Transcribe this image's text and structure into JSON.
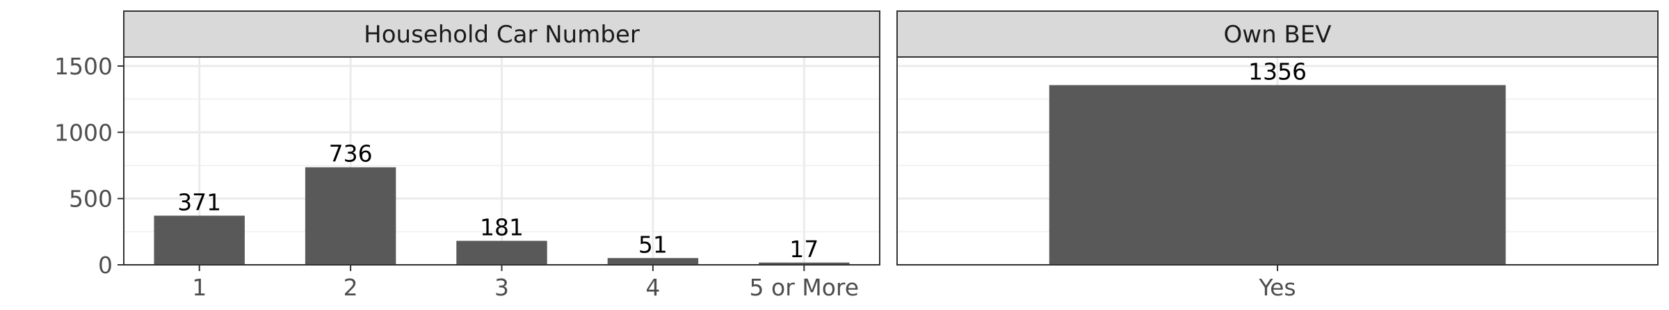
{
  "chart_data": [
    {
      "type": "bar",
      "title": "Household Car Number",
      "categories": [
        "1",
        "2",
        "3",
        "4",
        "5 or More"
      ],
      "values": [
        371,
        736,
        181,
        51,
        17
      ],
      "data_labels": [
        "371",
        "736",
        "181",
        "51",
        "17"
      ],
      "xlabel": "",
      "ylabel": "",
      "ylim": [
        0,
        1500
      ],
      "yticks": [
        0,
        500,
        1000,
        1500
      ],
      "ytick_labels": [
        "0",
        "500",
        "1000",
        "1500"
      ],
      "bar_color": "#595959",
      "grid": true
    },
    {
      "type": "bar",
      "title": "Own BEV",
      "categories": [
        "Yes"
      ],
      "values": [
        1356
      ],
      "data_labels": [
        "1356"
      ],
      "xlabel": "",
      "ylabel": "",
      "ylim": [
        0,
        1500
      ],
      "yticks": [
        0,
        500,
        1000,
        1500
      ],
      "ytick_labels": [
        "0",
        "500",
        "1000",
        "1500"
      ],
      "bar_color": "#595959",
      "grid": true
    }
  ],
  "theme": {
    "strip_fill": "#d9d9d9",
    "border_color": "#333333",
    "grid_major": "#ebebeb",
    "grid_minor": "#f3f3f3",
    "tick_text_color": "#4d4d4d"
  }
}
